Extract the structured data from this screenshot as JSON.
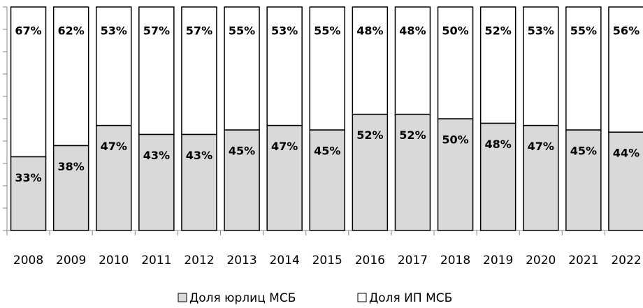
{
  "chart_data": {
    "type": "stacked_bar",
    "categories": [
      "2008",
      "2009",
      "2010",
      "2011",
      "2012",
      "2013",
      "2014",
      "2015",
      "2016",
      "2017",
      "2018",
      "2019",
      "2020",
      "2021",
      "2022"
    ],
    "series": [
      {
        "name": "Доля юрлиц МСБ",
        "color": "#d9d9d9",
        "values": [
          33,
          38,
          47,
          43,
          43,
          45,
          47,
          45,
          52,
          52,
          50,
          48,
          47,
          45,
          44
        ],
        "value_labels": [
          "33%",
          "38%",
          "47%",
          "43%",
          "43%",
          "45%",
          "47%",
          "45%",
          "52%",
          "52%",
          "50%",
          "48%",
          "47%",
          "45%",
          "44%"
        ]
      },
      {
        "name": "Доля ИП МСБ",
        "color": "#ffffff",
        "values": [
          67,
          62,
          53,
          57,
          57,
          55,
          53,
          55,
          48,
          48,
          50,
          52,
          53,
          55,
          56
        ],
        "value_labels": [
          "67%",
          "62%",
          "53%",
          "57%",
          "57%",
          "55%",
          "53%",
          "55%",
          "48%",
          "48%",
          "50%",
          "52%",
          "53%",
          "55%",
          "56%"
        ]
      }
    ],
    "ylim": [
      0,
      100
    ],
    "yticks": [
      0,
      10,
      20,
      30,
      40,
      50,
      60,
      70,
      80,
      90,
      100
    ]
  }
}
